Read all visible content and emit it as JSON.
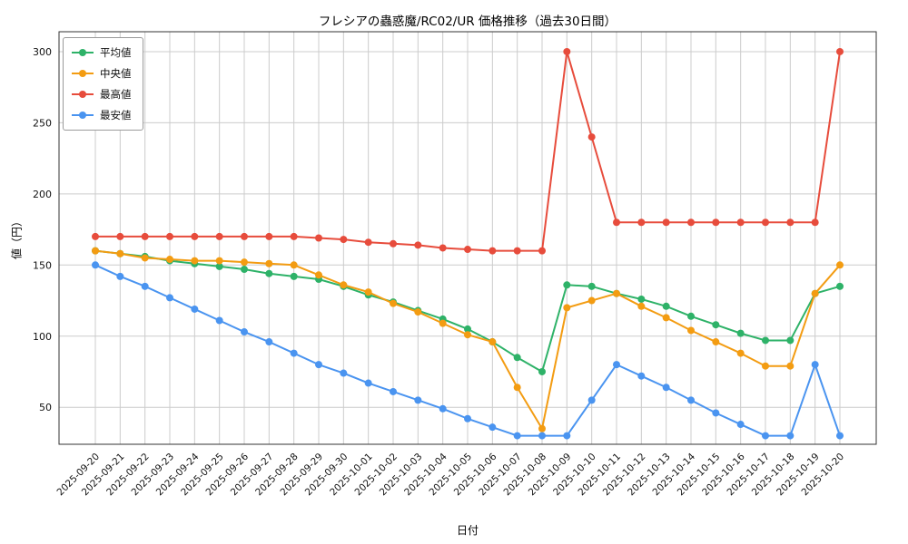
{
  "chart_data": {
    "type": "line",
    "title": "フレシアの蟲惑魔/RC02/UR 価格推移（過去30日間）",
    "xlabel": "日付",
    "ylabel": "値（円）",
    "x": [
      "2025-09-20",
      "2025-09-21",
      "2025-09-22",
      "2025-09-23",
      "2025-09-24",
      "2025-09-25",
      "2025-09-26",
      "2025-09-27",
      "2025-09-28",
      "2025-09-29",
      "2025-09-30",
      "2025-10-01",
      "2025-10-02",
      "2025-10-03",
      "2025-10-04",
      "2025-10-05",
      "2025-10-06",
      "2025-10-07",
      "2025-10-08",
      "2025-10-09",
      "2025-10-10",
      "2025-10-11",
      "2025-10-12",
      "2025-10-13",
      "2025-10-14",
      "2025-10-15",
      "2025-10-16",
      "2025-10-17",
      "2025-10-18",
      "2025-10-19",
      "2025-10-20"
    ],
    "series": [
      {
        "name": "平均値",
        "color": "#2eb268",
        "values": [
          160,
          158,
          156,
          153,
          151,
          149,
          147,
          144,
          142,
          140,
          135,
          129,
          124,
          118,
          112,
          105,
          96,
          85,
          75,
          136,
          135,
          130,
          126,
          121,
          114,
          108,
          102,
          97,
          97,
          130,
          135
        ]
      },
      {
        "name": "中央値",
        "color": "#f39c12",
        "values": [
          160,
          158,
          155,
          154,
          153,
          153,
          152,
          151,
          150,
          143,
          136,
          131,
          123,
          117,
          109,
          101,
          96,
          64,
          35,
          120,
          125,
          130,
          121,
          113,
          104,
          96,
          88,
          79,
          79,
          130,
          150
        ]
      },
      {
        "name": "最高値",
        "color": "#e74c3c",
        "values": [
          170,
          170,
          170,
          170,
          170,
          170,
          170,
          170,
          170,
          169,
          168,
          166,
          165,
          164,
          162,
          161,
          160,
          160,
          160,
          300,
          240,
          180,
          180,
          180,
          180,
          180,
          180,
          180,
          180,
          180,
          300
        ]
      },
      {
        "name": "最安値",
        "color": "#4a94f0",
        "values": [
          150,
          142,
          135,
          127,
          119,
          111,
          103,
          96,
          88,
          80,
          74,
          67,
          61,
          55,
          49,
          42,
          36,
          30,
          30,
          30,
          55,
          80,
          72,
          64,
          55,
          46,
          38,
          30,
          30,
          80,
          30
        ]
      }
    ],
    "ylim": [
      24,
      314
    ],
    "yticks": [
      50,
      100,
      150,
      200,
      250,
      300
    ],
    "grid": true,
    "grid_color": "#cccccc",
    "border_color": "#333333",
    "legend_position": "upper-left",
    "marker": "circle",
    "background": "#ffffff"
  }
}
